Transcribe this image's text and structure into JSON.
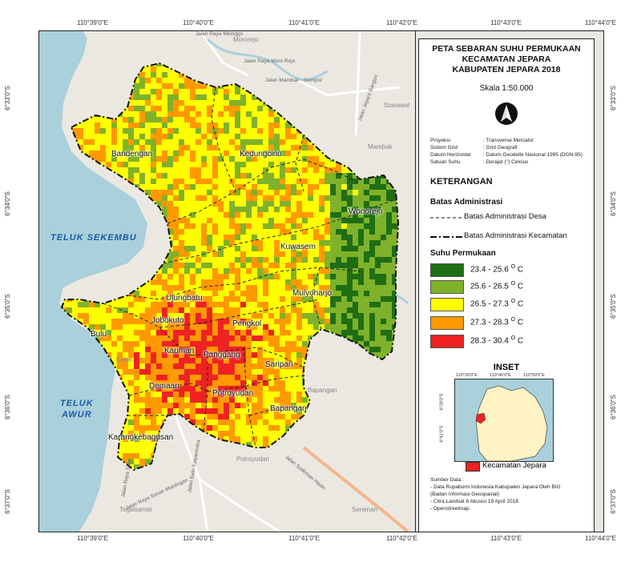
{
  "map": {
    "lon_ticks": [
      "110°39'0\"E",
      "110°40'0\"E",
      "110°41'0\"E",
      "110°42'0\"E",
      "110°43'0\"E",
      "110°44'0\"E"
    ],
    "lat_ticks": [
      "6°33'0\"S",
      "6°34'0\"S",
      "6°35'0\"S",
      "6°36'0\"S",
      "6°37'0\"S"
    ],
    "villages": [
      {
        "name": "Bandengan"
      },
      {
        "name": "Kedungcino"
      },
      {
        "name": "Wonorejo"
      },
      {
        "name": "Kuwasem"
      },
      {
        "name": "Mulyoharjo"
      },
      {
        "name": "Ujungbatu"
      },
      {
        "name": "Jobokuto"
      },
      {
        "name": "Pengkol"
      },
      {
        "name": "Bulu"
      },
      {
        "name": "Kauman"
      },
      {
        "name": "Panggang"
      },
      {
        "name": "Saripan"
      },
      {
        "name": "Demaan"
      },
      {
        "name": "Potroyudan"
      },
      {
        "name": "Bapangan"
      },
      {
        "name": "Karangkebagusan"
      }
    ],
    "seas": {
      "sekembu": "TELUK SEKEMBU",
      "awur_line1": "TELUK",
      "awur_line2": "AWUR"
    },
    "base_labels": [
      "Mororejo",
      "Suwawal",
      "Mambak",
      "Tegalsambi",
      "Senenan",
      "Potroyudan",
      "Bapangan",
      "Kaum"
    ],
    "roads": [
      "Jalan Raya Mlonggo",
      "Jalan Mambak - Gempol",
      "Jalan Jepara Bangsri",
      "Jalan Raya Moro Rejo",
      "Jalan Raya Sunan Mantingan",
      "Jalan Batu Kalyanmitra",
      "Jalan Sudirman Hasin",
      "Jalan Raya Suru"
    ]
  },
  "panel": {
    "title_line1": "PETA SEBARAN SUHU PERMUKAAN",
    "title_line2": "KECAMATAN JEPARA",
    "title_line3": "KABUPATEN JEPARA 2018",
    "scale": "Skala 1:50.000",
    "meta": [
      {
        "key": "Proyeksi",
        "value": ": Transverse Mercator"
      },
      {
        "key": "Sistem Grid",
        "value": ": Grid Geografi"
      },
      {
        "key": "Datum Horizontal",
        "value": ": Datum Geodetik Nasional 1995 (DGN-95)"
      },
      {
        "key": "Satuan Suhu",
        "value": ": Derajat (°) Celcius"
      }
    ],
    "legend_title": "KETERANGAN",
    "admin_title": "Batas Administrasi",
    "admin_items": [
      {
        "label": "Batas Administrasi Desa"
      },
      {
        "label": "Batas Administrasi Kecamatan"
      }
    ],
    "temp_title": "Suhu Permukaan",
    "temp_classes": [
      {
        "range": "23.4 - 25.6",
        "unit": "O",
        "suffix": " C",
        "color": "#1f6e14"
      },
      {
        "range": "25.6 - 26.5",
        "unit": "O",
        "suffix": " C",
        "color": "#7fb22a"
      },
      {
        "range": "26.5 - 27.3",
        "unit": "O",
        "suffix": " C",
        "color": "#ffff00"
      },
      {
        "range": "27.3 - 28.3",
        "unit": "O",
        "suffix": " C",
        "color": "#ff9900"
      },
      {
        "range": "28.3 - 30.4",
        "unit": "O",
        "suffix": " C",
        "color": "#ee2222"
      }
    ],
    "inset_title": "INSET",
    "inset_lon": [
      "110°33'0\"E",
      "110°46'0\"E",
      "110°59'0\"E"
    ],
    "inset_lat": [
      "6°28'0\"S",
      "6°41'0\"S"
    ],
    "inset_legend": "Kecamatan Jepara",
    "source_title": "Sumber Data :",
    "sources": [
      "- Data Rupabumi Indonesia Kabupaten Jepara Oleh BIG",
      "  (Badan Informasi Geospasial)",
      "- Citra Landsat 8 Akusisi 19 April 2018",
      "- Openstreetmap"
    ]
  },
  "colors": {
    "sea": "#a9d0db",
    "land": "#ebe8e1",
    "heat_green": "#1f6e14",
    "heat_lightgreen": "#7fb22a",
    "heat_yellow": "#ffff00",
    "heat_orange": "#ff9900",
    "heat_red": "#ee2222"
  }
}
